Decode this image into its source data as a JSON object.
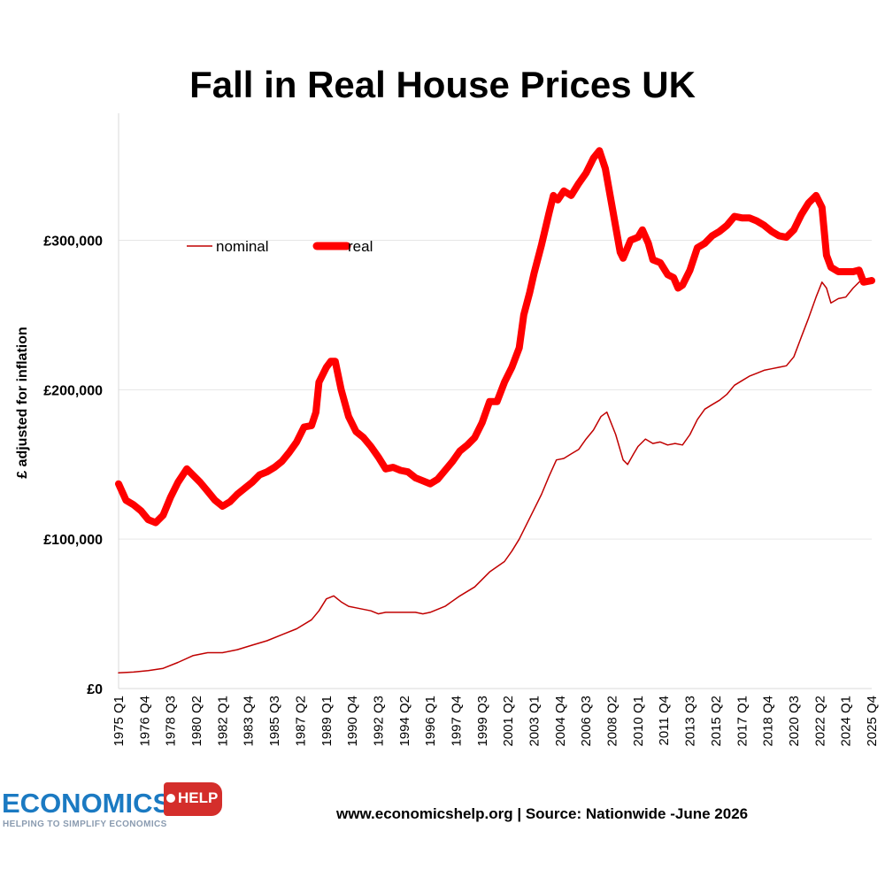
{
  "chart_data": {
    "type": "line",
    "title": "Fall in Real House Prices UK",
    "xlabel": "",
    "ylabel": "£ adjusted for inflation",
    "ylim": [
      0,
      385000
    ],
    "yticks": [
      0,
      100000,
      200000,
      300000
    ],
    "ytick_labels": [
      "£0",
      "£100,000",
      "£200,000",
      "£300,000"
    ],
    "x_range": [
      1975.0,
      2025.75
    ],
    "xtick_labels": [
      "1975 Q1",
      "1976 Q4",
      "1978 Q3",
      "1980 Q2",
      "1982 Q1",
      "1983 Q4",
      "1985 Q3",
      "1987 Q2",
      "1989 Q1",
      "1990 Q4",
      "1992 Q3",
      "1994 Q2",
      "1996 Q1",
      "1997 Q4",
      "1999 Q3",
      "2001 Q2",
      "2003 Q1",
      "2004 Q4",
      "2006 Q3",
      "2008 Q2",
      "2010 Q1",
      "2011 Q4",
      "2013 Q3",
      "2015 Q2",
      "2017 Q1",
      "2018 Q4",
      "2020 Q3",
      "2022 Q2",
      "2024 Q1",
      "2025 Q4"
    ],
    "xtick_values": [
      1975.0,
      1976.75,
      1978.5,
      1980.25,
      1982.0,
      1983.75,
      1985.5,
      1987.25,
      1989.0,
      1990.75,
      1992.5,
      1994.25,
      1996.0,
      1997.75,
      1999.5,
      2001.25,
      2003.0,
      2004.75,
      2006.5,
      2008.25,
      2010.0,
      2011.75,
      2013.5,
      2015.25,
      2017.0,
      2018.75,
      2020.5,
      2022.25,
      2024.0,
      2025.75
    ],
    "grid": true,
    "legend_position": "top-left",
    "series": [
      {
        "name": "nominal",
        "color": "#c00000",
        "style": "thin",
        "points": [
          [
            1975.0,
            10500
          ],
          [
            1976.0,
            11000
          ],
          [
            1977.0,
            12000
          ],
          [
            1978.0,
            13500
          ],
          [
            1979.0,
            17500
          ],
          [
            1980.0,
            22000
          ],
          [
            1981.0,
            24000
          ],
          [
            1982.0,
            24000
          ],
          [
            1983.0,
            26000
          ],
          [
            1984.0,
            29000
          ],
          [
            1985.0,
            32000
          ],
          [
            1986.0,
            36000
          ],
          [
            1987.0,
            40000
          ],
          [
            1988.0,
            46000
          ],
          [
            1988.5,
            52000
          ],
          [
            1989.0,
            60000
          ],
          [
            1989.5,
            62000
          ],
          [
            1990.0,
            58000
          ],
          [
            1990.5,
            55000
          ],
          [
            1991.0,
            54000
          ],
          [
            1992.0,
            52000
          ],
          [
            1992.5,
            50000
          ],
          [
            1993.0,
            51000
          ],
          [
            1994.0,
            51000
          ],
          [
            1995.0,
            51000
          ],
          [
            1995.5,
            50000
          ],
          [
            1996.0,
            51000
          ],
          [
            1997.0,
            55000
          ],
          [
            1998.0,
            62000
          ],
          [
            1999.0,
            68000
          ],
          [
            2000.0,
            78000
          ],
          [
            2001.0,
            85000
          ],
          [
            2001.5,
            92000
          ],
          [
            2002.0,
            100000
          ],
          [
            2002.5,
            110000
          ],
          [
            2003.0,
            120000
          ],
          [
            2003.5,
            130000
          ],
          [
            2004.0,
            142000
          ],
          [
            2004.5,
            153000
          ],
          [
            2005.0,
            154000
          ],
          [
            2005.5,
            157000
          ],
          [
            2006.0,
            160000
          ],
          [
            2006.5,
            167000
          ],
          [
            2007.0,
            173000
          ],
          [
            2007.5,
            182000
          ],
          [
            2007.9,
            185000
          ],
          [
            2008.5,
            170000
          ],
          [
            2009.0,
            153000
          ],
          [
            2009.3,
            150000
          ],
          [
            2009.7,
            157000
          ],
          [
            2010.0,
            162000
          ],
          [
            2010.5,
            167000
          ],
          [
            2011.0,
            164000
          ],
          [
            2011.5,
            165000
          ],
          [
            2012.0,
            163000
          ],
          [
            2012.5,
            164000
          ],
          [
            2013.0,
            163000
          ],
          [
            2013.5,
            170000
          ],
          [
            2014.0,
            180000
          ],
          [
            2014.5,
            187000
          ],
          [
            2015.0,
            190000
          ],
          [
            2015.5,
            193000
          ],
          [
            2016.0,
            197000
          ],
          [
            2016.5,
            203000
          ],
          [
            2017.0,
            206000
          ],
          [
            2017.5,
            209000
          ],
          [
            2018.0,
            211000
          ],
          [
            2018.5,
            213000
          ],
          [
            2019.0,
            214000
          ],
          [
            2019.5,
            215000
          ],
          [
            2020.0,
            216000
          ],
          [
            2020.5,
            222000
          ],
          [
            2021.0,
            235000
          ],
          [
            2021.5,
            248000
          ],
          [
            2022.0,
            262000
          ],
          [
            2022.4,
            272000
          ],
          [
            2022.7,
            268000
          ],
          [
            2023.0,
            258000
          ],
          [
            2023.5,
            261000
          ],
          [
            2024.0,
            262000
          ],
          [
            2024.5,
            268000
          ],
          [
            2025.0,
            273000
          ],
          [
            2025.75,
            275000
          ]
        ]
      },
      {
        "name": "real",
        "color": "#ff0000",
        "style": "thick",
        "points": [
          [
            1975.0,
            137000
          ],
          [
            1975.5,
            126000
          ],
          [
            1976.0,
            123000
          ],
          [
            1976.5,
            119000
          ],
          [
            1977.0,
            113000
          ],
          [
            1977.5,
            111000
          ],
          [
            1978.0,
            116000
          ],
          [
            1978.5,
            128000
          ],
          [
            1979.0,
            138000
          ],
          [
            1979.6,
            147000
          ],
          [
            1980.0,
            143000
          ],
          [
            1980.5,
            138000
          ],
          [
            1981.0,
            132000
          ],
          [
            1981.5,
            126000
          ],
          [
            1982.0,
            122000
          ],
          [
            1982.5,
            125000
          ],
          [
            1983.0,
            130000
          ],
          [
            1983.5,
            134000
          ],
          [
            1984.0,
            138000
          ],
          [
            1984.5,
            143000
          ],
          [
            1985.0,
            145000
          ],
          [
            1985.5,
            148000
          ],
          [
            1986.0,
            152000
          ],
          [
            1986.5,
            158000
          ],
          [
            1987.0,
            165000
          ],
          [
            1987.5,
            175000
          ],
          [
            1988.0,
            176000
          ],
          [
            1988.3,
            185000
          ],
          [
            1988.5,
            205000
          ],
          [
            1989.0,
            215000
          ],
          [
            1989.3,
            219000
          ],
          [
            1989.6,
            219000
          ],
          [
            1990.0,
            200000
          ],
          [
            1990.5,
            182000
          ],
          [
            1991.0,
            172000
          ],
          [
            1991.5,
            168000
          ],
          [
            1992.0,
            162000
          ],
          [
            1992.5,
            155000
          ],
          [
            1993.0,
            147000
          ],
          [
            1993.5,
            148000
          ],
          [
            1994.0,
            146000
          ],
          [
            1994.5,
            145000
          ],
          [
            1995.0,
            141000
          ],
          [
            1995.5,
            139000
          ],
          [
            1996.0,
            137000
          ],
          [
            1996.5,
            140000
          ],
          [
            1997.0,
            146000
          ],
          [
            1997.5,
            152000
          ],
          [
            1998.0,
            159000
          ],
          [
            1998.5,
            163000
          ],
          [
            1999.0,
            168000
          ],
          [
            1999.5,
            178000
          ],
          [
            2000.0,
            192000
          ],
          [
            2000.5,
            192000
          ],
          [
            2001.0,
            205000
          ],
          [
            2001.5,
            215000
          ],
          [
            2002.0,
            228000
          ],
          [
            2002.3,
            250000
          ],
          [
            2002.7,
            265000
          ],
          [
            2003.0,
            278000
          ],
          [
            2003.5,
            297000
          ],
          [
            2004.0,
            318000
          ],
          [
            2004.3,
            330000
          ],
          [
            2004.6,
            327000
          ],
          [
            2005.0,
            333000
          ],
          [
            2005.5,
            330000
          ],
          [
            2006.0,
            338000
          ],
          [
            2006.5,
            345000
          ],
          [
            2007.0,
            355000
          ],
          [
            2007.4,
            360000
          ],
          [
            2007.8,
            348000
          ],
          [
            2008.3,
            320000
          ],
          [
            2008.8,
            292000
          ],
          [
            2009.0,
            288000
          ],
          [
            2009.5,
            300000
          ],
          [
            2010.0,
            302000
          ],
          [
            2010.3,
            307000
          ],
          [
            2010.7,
            298000
          ],
          [
            2011.0,
            287000
          ],
          [
            2011.5,
            285000
          ],
          [
            2012.0,
            277000
          ],
          [
            2012.4,
            275000
          ],
          [
            2012.7,
            268000
          ],
          [
            2013.0,
            270000
          ],
          [
            2013.5,
            280000
          ],
          [
            2014.0,
            295000
          ],
          [
            2014.5,
            298000
          ],
          [
            2015.0,
            303000
          ],
          [
            2015.5,
            306000
          ],
          [
            2016.0,
            310000
          ],
          [
            2016.5,
            316000
          ],
          [
            2017.0,
            315000
          ],
          [
            2017.5,
            315000
          ],
          [
            2018.0,
            313000
          ],
          [
            2018.5,
            310000
          ],
          [
            2019.0,
            306000
          ],
          [
            2019.5,
            303000
          ],
          [
            2020.0,
            302000
          ],
          [
            2020.5,
            307000
          ],
          [
            2021.0,
            317000
          ],
          [
            2021.5,
            325000
          ],
          [
            2022.0,
            330000
          ],
          [
            2022.4,
            322000
          ],
          [
            2022.7,
            290000
          ],
          [
            2023.0,
            282000
          ],
          [
            2023.5,
            279000
          ],
          [
            2024.0,
            279000
          ],
          [
            2024.5,
            279000
          ],
          [
            2024.9,
            280000
          ],
          [
            2025.2,
            272000
          ],
          [
            2025.75,
            273000
          ]
        ]
      }
    ]
  },
  "footer": {
    "source_text": "www.economicshelp.org | Source: Nationwide -June 2026"
  },
  "logo": {
    "main_text": "ECONOMICS",
    "badge_text": "HELP",
    "tagline": "HELPING TO SIMPLIFY ECONOMICS",
    "main_color": "#1b7ac2",
    "badge_color": "#d42e2b"
  }
}
